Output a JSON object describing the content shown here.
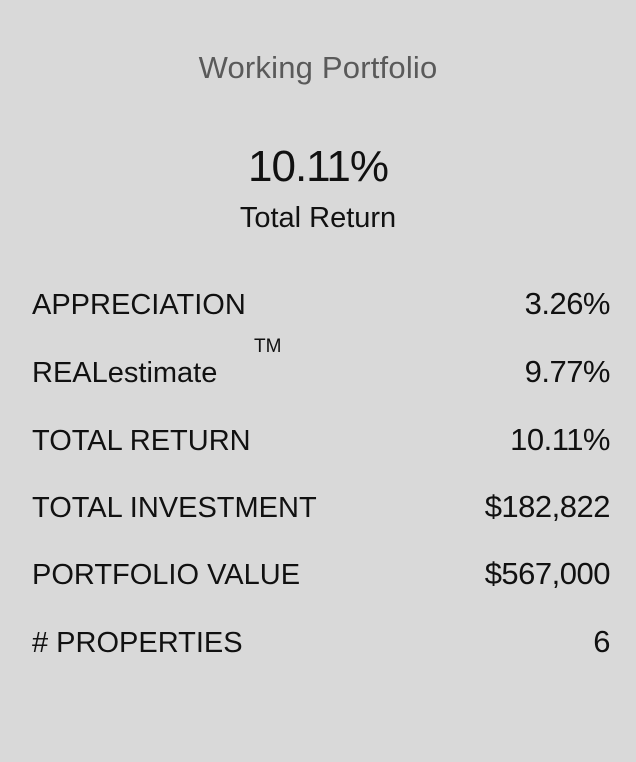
{
  "panel": {
    "title": "Working Portfolio",
    "headline_value": "10.11%",
    "headline_label": "Total Return"
  },
  "metrics": [
    {
      "label": "APPRECIATION",
      "value": "3.26%"
    },
    {
      "label": "REALestimate",
      "trademark": "TM",
      "value": "9.77%"
    },
    {
      "label": "TOTAL RETURN",
      "value": "10.11%"
    },
    {
      "label": "TOTAL INVESTMENT",
      "value": "$182,822"
    },
    {
      "label": "PORTFOLIO VALUE",
      "value": "$567,000"
    },
    {
      "label": "# PROPERTIES",
      "value": "6"
    }
  ]
}
